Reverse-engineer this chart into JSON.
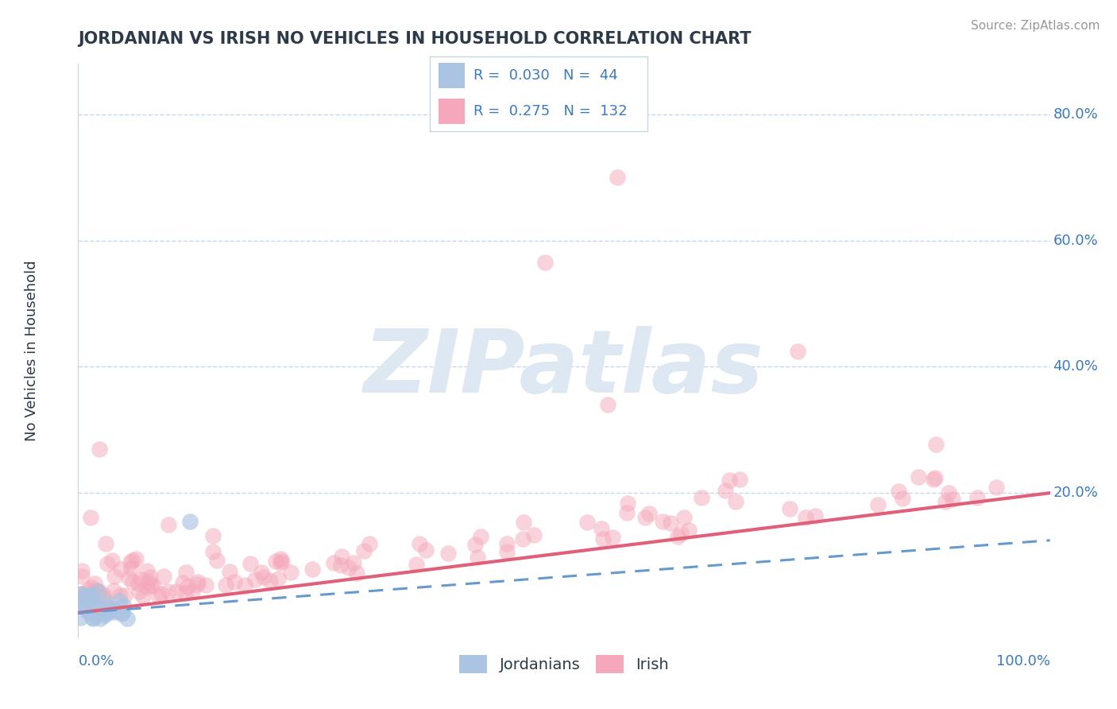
{
  "title": "JORDANIAN VS IRISH NO VEHICLES IN HOUSEHOLD CORRELATION CHART",
  "source": "Source: ZipAtlas.com",
  "ylabel": "No Vehicles in Household",
  "ytick_values": [
    0.0,
    0.2,
    0.4,
    0.6,
    0.8
  ],
  "ytick_labels": [
    "",
    "20.0%",
    "40.0%",
    "60.0%",
    "80.0%"
  ],
  "xmin": 0.0,
  "xmax": 1.0,
  "ymin": -0.03,
  "ymax": 0.88,
  "jordanian_R": 0.03,
  "jordanian_N": 44,
  "irish_R": 0.275,
  "irish_N": 132,
  "jordanian_color": "#aac4e2",
  "irish_color": "#f5a8bb",
  "jordanian_line_color": "#6699cc",
  "irish_line_color": "#e0607a",
  "title_color": "#2d3a4a",
  "axis_label_color": "#3a7abf",
  "legend_R_color": "#3a7abf",
  "grid_color": "#c8d8e8",
  "background_color": "#ffffff",
  "watermark_text": "ZIPatlas",
  "watermark_color": "#dde8f2",
  "irish_line_x0": 0.0,
  "irish_line_y0": 0.01,
  "irish_line_x1": 1.0,
  "irish_line_y1": 0.2,
  "jord_line_x0": 0.0,
  "jord_line_y0": 0.01,
  "jord_line_x1": 1.0,
  "jord_line_y1": 0.125
}
